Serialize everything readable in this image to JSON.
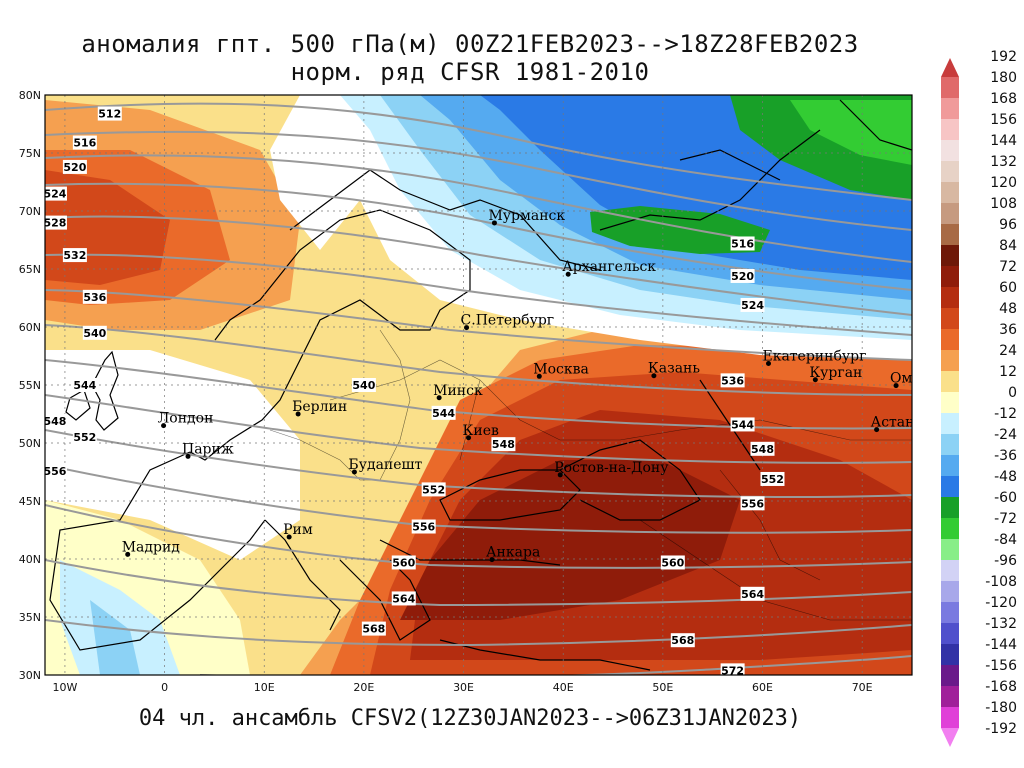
{
  "title_line1": "аномалия гпт. 500 гПа(м) 00Z21FEB2023-->18Z28FEB2023",
  "title_line2": "норм. ряд CFSR 1981-2010",
  "footer": "04 чл. ансамбль CFSV2(12Z30JAN2023-->06Z31JAN2023)",
  "axes": {
    "lat_ticks": [
      "80N",
      "75N",
      "70N",
      "65N",
      "60N",
      "55N",
      "50N",
      "45N",
      "40N",
      "35N",
      "30N"
    ],
    "lon_ticks": [
      "10W",
      "0",
      "10E",
      "20E",
      "30E",
      "40E",
      "50E",
      "60E",
      "70E"
    ]
  },
  "colorbar": {
    "labels": [
      "192",
      "180",
      "168",
      "156",
      "144",
      "132",
      "120",
      "108",
      "96",
      "84",
      "72",
      "60",
      "48",
      "36",
      "24",
      "12",
      "0",
      "-12",
      "-24",
      "-36",
      "-48",
      "-60",
      "-72",
      "-84",
      "-96",
      "-108",
      "-120",
      "-132",
      "-144",
      "-156",
      "-168",
      "-180",
      "-192"
    ],
    "colors": [
      "#c83c3c",
      "#e06a6a",
      "#f09a9a",
      "#f7c5c5",
      "#f2e1e1",
      "#e7d2c6",
      "#d8b8a2",
      "#c69a80",
      "#a86a45",
      "#6e1808",
      "#8f1c0a",
      "#b42d10",
      "#d2481a",
      "#ea6a2a",
      "#f5a050",
      "#fae08a",
      "#ffffc8",
      "#c8f0ff",
      "#8cd2f5",
      "#55aaf0",
      "#2a7ae6",
      "#18a028",
      "#33cc33",
      "#88ee88",
      "#d2d2f5",
      "#a8a8ea",
      "#7a7ae0",
      "#5050cc",
      "#3232a6",
      "#6a1a8a",
      "#a0209a",
      "#e040d8",
      "#f27ff0"
    ]
  },
  "cities": [
    {
      "name": "Мурманск",
      "lon": 33.1,
      "lat": 68.97
    },
    {
      "name": "Архангельск",
      "lon": 40.5,
      "lat": 64.55
    },
    {
      "name": "С.Петербург",
      "lon": 30.3,
      "lat": 59.95
    },
    {
      "name": "Москва",
      "lon": 37.6,
      "lat": 55.75
    },
    {
      "name": "Казань",
      "lon": 49.1,
      "lat": 55.8
    },
    {
      "name": "Екатеринбург",
      "lon": 60.6,
      "lat": 56.85
    },
    {
      "name": "Курган",
      "lon": 65.3,
      "lat": 55.45
    },
    {
      "name": "Омск",
      "lon": 73.4,
      "lat": 54.95
    },
    {
      "name": "Астана",
      "lon": 71.45,
      "lat": 51.15
    },
    {
      "name": "Минск",
      "lon": 27.55,
      "lat": 53.9
    },
    {
      "name": "Киев",
      "lon": 30.5,
      "lat": 50.45
    },
    {
      "name": "Берлин",
      "lon": 13.4,
      "lat": 52.5
    },
    {
      "name": "Лондон",
      "lon": -0.1,
      "lat": 51.5
    },
    {
      "name": "Париж",
      "lon": 2.35,
      "lat": 48.85
    },
    {
      "name": "Ростов-на-Дону",
      "lon": 39.7,
      "lat": 47.25
    },
    {
      "name": "Будапешт",
      "lon": 19.05,
      "lat": 47.5
    },
    {
      "name": "Рим",
      "lon": 12.5,
      "lat": 41.9
    },
    {
      "name": "Мадрид",
      "lon": -3.7,
      "lat": 40.4
    },
    {
      "name": "Анкара",
      "lon": 32.85,
      "lat": 39.95
    }
  ],
  "contour_labels": [
    {
      "text": "512",
      "lon": -5.5,
      "lat": 78.4
    },
    {
      "text": "516",
      "lon": -8.0,
      "lat": 75.9
    },
    {
      "text": "520",
      "lon": -9.0,
      "lat": 73.8
    },
    {
      "text": "524",
      "lon": -11.0,
      "lat": 71.5
    },
    {
      "text": "528",
      "lon": -11.0,
      "lat": 69.0
    },
    {
      "text": "532",
      "lon": -9.0,
      "lat": 66.2
    },
    {
      "text": "536",
      "lon": -7.0,
      "lat": 62.6
    },
    {
      "text": "540",
      "lon": -7.0,
      "lat": 59.5
    },
    {
      "text": "544",
      "lon": -8.0,
      "lat": 55.0
    },
    {
      "text": "548",
      "lon": -11.0,
      "lat": 51.9
    },
    {
      "text": "552",
      "lon": -8.0,
      "lat": 50.5
    },
    {
      "text": "556",
      "lon": -11.0,
      "lat": 47.6
    },
    {
      "text": "540",
      "lon": 20.0,
      "lat": 55.0
    },
    {
      "text": "544",
      "lon": 28.0,
      "lat": 52.6
    },
    {
      "text": "548",
      "lon": 34.0,
      "lat": 49.9
    },
    {
      "text": "552",
      "lon": 27.0,
      "lat": 46.0
    },
    {
      "text": "556",
      "lon": 26.0,
      "lat": 42.8
    },
    {
      "text": "560",
      "lon": 24.0,
      "lat": 39.7
    },
    {
      "text": "564",
      "lon": 24.0,
      "lat": 36.6
    },
    {
      "text": "568",
      "lon": 21.0,
      "lat": 34.0
    },
    {
      "text": "516",
      "lon": 58.0,
      "lat": 67.2
    },
    {
      "text": "520",
      "lon": 58.0,
      "lat": 64.4
    },
    {
      "text": "524",
      "lon": 59.0,
      "lat": 61.9
    },
    {
      "text": "536",
      "lon": 57.0,
      "lat": 55.4
    },
    {
      "text": "544",
      "lon": 58.0,
      "lat": 51.6
    },
    {
      "text": "548",
      "lon": 60.0,
      "lat": 49.5
    },
    {
      "text": "552",
      "lon": 61.0,
      "lat": 46.9
    },
    {
      "text": "556",
      "lon": 59.0,
      "lat": 44.8
    },
    {
      "text": "560",
      "lon": 51.0,
      "lat": 39.7
    },
    {
      "text": "564",
      "lon": 59.0,
      "lat": 37.0
    },
    {
      "text": "568",
      "lon": 52.0,
      "lat": 33.0
    },
    {
      "text": "572",
      "lon": 57.0,
      "lat": 30.4
    }
  ]
}
